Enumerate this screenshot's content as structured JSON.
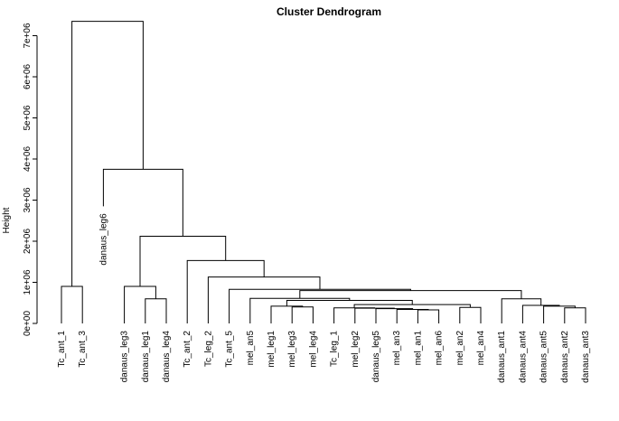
{
  "chart_data": {
    "type": "dendrogram",
    "title": "Cluster Dendrogram",
    "ylabel": "Height",
    "ylim": [
      0,
      7200000
    ],
    "yticks": [
      {
        "value": 0,
        "label": "0e+00"
      },
      {
        "value": 1000000,
        "label": "1e+06"
      },
      {
        "value": 2000000,
        "label": "2e+06"
      },
      {
        "value": 3000000,
        "label": "3e+06"
      },
      {
        "value": 4000000,
        "label": "4e+06"
      },
      {
        "value": 5000000,
        "label": "5e+06"
      },
      {
        "value": 6000000,
        "label": "6e+06"
      },
      {
        "value": 7000000,
        "label": "7e+06"
      }
    ],
    "leaves": [
      {
        "label": "Tc_ant_1",
        "height": 0
      },
      {
        "label": "Tc_ant_3",
        "height": 0
      },
      {
        "label": "danaus_leg6",
        "height": 2850000
      },
      {
        "label": "danaus_leg3",
        "height": 0
      },
      {
        "label": "danaus_leg1",
        "height": 0
      },
      {
        "label": "danaus_leg4",
        "height": 0
      },
      {
        "label": "Tc_ant_2",
        "height": 0
      },
      {
        "label": "Tc_leg_2",
        "height": 0
      },
      {
        "label": "Tc_ant_5",
        "height": 0
      },
      {
        "label": "mel_an5",
        "height": 0
      },
      {
        "label": "mel_leg1",
        "height": 0
      },
      {
        "label": "mel_leg3",
        "height": 0
      },
      {
        "label": "mel_leg4",
        "height": 0
      },
      {
        "label": "Tc_leg_1",
        "height": 0
      },
      {
        "label": "mel_leg2",
        "height": 0
      },
      {
        "label": "danaus_leg5",
        "height": 0
      },
      {
        "label": "mel_an3",
        "height": 0
      },
      {
        "label": "mel_an1",
        "height": 0
      },
      {
        "label": "mel_an6",
        "height": 0
      },
      {
        "label": "mel_an2",
        "height": 0
      },
      {
        "label": "mel_an4",
        "height": 0
      },
      {
        "label": "danaus_ant1",
        "height": 0
      },
      {
        "label": "danaus_ant4",
        "height": 0
      },
      {
        "label": "danaus_ant5",
        "height": 0
      },
      {
        "label": "danaus_ant2",
        "height": 0
      },
      {
        "label": "danaus_ant3",
        "height": 0
      }
    ],
    "merges": [
      {
        "a": 0,
        "b": 1,
        "height": 900000
      },
      {
        "a": 17,
        "b": 18,
        "height": 330000
      },
      {
        "a": 16,
        "b": "m1",
        "height": 340000
      },
      {
        "a": 15,
        "b": "m2",
        "height": 360000
      },
      {
        "a": 14,
        "b": "m3",
        "height": 370000
      },
      {
        "a": 13,
        "b": "m4",
        "height": 380000
      },
      {
        "a": 24,
        "b": 25,
        "height": 380000
      },
      {
        "a": 19,
        "b": 20,
        "height": 390000
      },
      {
        "a": 11,
        "b": 12,
        "height": 400000
      },
      {
        "a": 23,
        "b": "m6",
        "height": 420000
      },
      {
        "a": 10,
        "b": "m8",
        "height": 420000
      },
      {
        "a": 22,
        "b": "m9",
        "height": 440000
      },
      {
        "a": "m5",
        "b": "m7",
        "height": 460000
      },
      {
        "a": 21,
        "b": "m11",
        "height": 600000
      },
      {
        "a": 4,
        "b": 5,
        "height": 600000
      },
      {
        "a": 3,
        "b": "m14",
        "height": 900000
      },
      {
        "a": "m10",
        "b": "m12",
        "height": 560000
      },
      {
        "a": 9,
        "b": "m16",
        "height": 610000
      },
      {
        "a": "m17",
        "b": "m13",
        "height": 800000
      },
      {
        "a": 8,
        "b": "m18",
        "height": 830000
      },
      {
        "a": 7,
        "b": "m19",
        "height": 1130000
      },
      {
        "a": 6,
        "b": "m20",
        "height": 1530000
      },
      {
        "a": "m15",
        "b": "m21",
        "height": 2120000
      },
      {
        "a": 2,
        "b": "m22",
        "height": 3750000
      },
      {
        "a": "m0",
        "b": "m23",
        "height": 7350000
      }
    ]
  }
}
